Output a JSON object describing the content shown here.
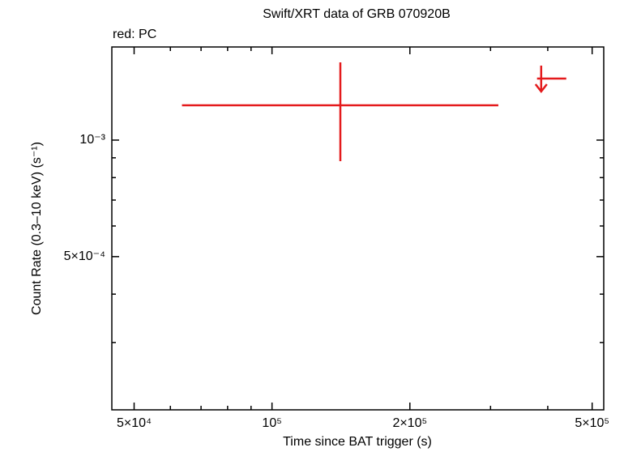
{
  "chart_data": {
    "type": "scatter",
    "title": "Swift/XRT data of GRB 070920B",
    "legend_text": "red: PC",
    "x_label": "Time since BAT trigger (s)",
    "y_label": "Count Rate (0.3–10 keV) (s⁻¹)",
    "log_x": true,
    "log_y": true,
    "xlim": [
      44700,
      530000
    ],
    "ylim": [
      0.000201,
      0.00174
    ],
    "xticks": [
      {
        "value": 50000,
        "label": "5×10⁴"
      },
      {
        "value": 100000,
        "label": "10⁵"
      },
      {
        "value": 200000,
        "label": "2×10⁵"
      },
      {
        "value": 500000,
        "label": "5×10⁵"
      }
    ],
    "xminor": [
      60000,
      70000,
      80000,
      90000,
      300000,
      400000
    ],
    "yticks": [
      {
        "value": 0.001,
        "label": "10⁻³"
      },
      {
        "value": 0.0005,
        "label": "5×10⁻⁴"
      }
    ],
    "yminor": [
      0.0003,
      0.0004,
      0.0006,
      0.0007,
      0.0008,
      0.0009
    ],
    "series": [
      {
        "color": "#e41a1c",
        "x": [
          141000
        ],
        "x_low": [
          63600
        ],
        "x_high": [
          312000
        ],
        "y": [
          0.00123
        ],
        "y_low": [
          0.000882
        ],
        "y_high": [
          0.001588
        ]
      }
    ],
    "upper_limits": {
      "color": "#e41a1c",
      "x": [
        387000
      ],
      "x_low": [
        379000
      ],
      "x_high": [
        439000
      ],
      "y": [
        0.001442
      ]
    }
  }
}
